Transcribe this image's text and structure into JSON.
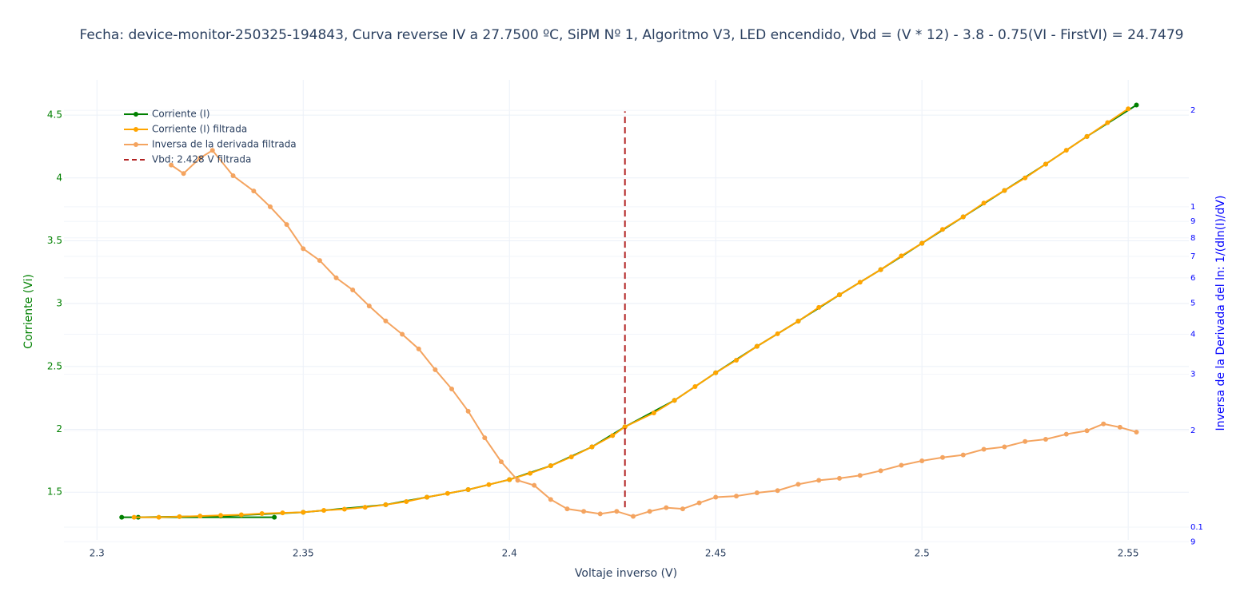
{
  "chart_data": {
    "type": "line",
    "title": "Fecha: device-monitor-250325-194843, Curva reverse IV a 27.7500 ºC, SiPM Nº 1, Algoritmo V3, LED encendido,  Vbd = (V * 12) - 3.8 - 0.75(VI - FirstVI) = 24.7479",
    "x_label": "Voltaje inverso (V)",
    "y_label": "Corriente (Vi)",
    "y2_label": "Inversa de la Derivada del ln: 1/(dln(I)/dV)",
    "xlim": [
      2.292,
      2.5647
    ],
    "xticks": [
      2.3,
      2.35,
      2.4,
      2.45,
      2.5,
      2.55
    ],
    "ylim": [
      1.12,
      4.78
    ],
    "yticks": [
      1.5,
      2,
      2.5,
      3,
      3.5,
      4,
      4.5
    ],
    "y2lim": [
      0.0912,
      2.49
    ],
    "y2_log": true,
    "y2ticks": [
      {
        "value": 0.09,
        "label": "9"
      },
      0.1,
      {
        "value": 0.2,
        "label": "2"
      },
      {
        "value": 0.3,
        "label": "3"
      },
      {
        "value": 0.4,
        "label": "4"
      },
      {
        "value": 0.5,
        "label": "5"
      },
      {
        "value": 0.6,
        "label": "6"
      },
      {
        "value": 0.7,
        "label": "7"
      },
      {
        "value": 0.8,
        "label": "8"
      },
      {
        "value": 0.9,
        "label": "9"
      },
      1,
      2
    ],
    "grid": true,
    "legend": "top-left",
    "series": [
      {
        "name": "Corriente (I)",
        "color": "#008000",
        "style": "solid",
        "markers": true,
        "x": [
          2.343,
          2.306,
          2.31,
          2.33,
          2.35,
          2.37,
          2.38,
          2.39,
          2.4,
          2.41,
          2.42,
          2.428,
          2.44,
          2.45,
          2.46,
          2.47,
          2.48,
          2.49,
          2.5,
          2.51,
          2.52,
          2.53,
          2.54,
          2.552
        ],
        "values": [
          1.3,
          1.3,
          1.3,
          1.31,
          1.34,
          1.4,
          1.46,
          1.52,
          1.6,
          1.71,
          1.86,
          2.02,
          2.23,
          2.45,
          2.66,
          2.86,
          3.07,
          3.27,
          3.48,
          3.69,
          3.9,
          4.11,
          4.33,
          4.58
        ]
      },
      {
        "name": "Corriente (I) filtrada",
        "color": "#ffa500",
        "style": "solid",
        "markers": true,
        "x": [
          2.309,
          2.315,
          2.32,
          2.325,
          2.33,
          2.335,
          2.34,
          2.345,
          2.35,
          2.355,
          2.36,
          2.365,
          2.37,
          2.375,
          2.38,
          2.385,
          2.39,
          2.395,
          2.4,
          2.405,
          2.41,
          2.415,
          2.42,
          2.425,
          2.428,
          2.435,
          2.44,
          2.445,
          2.45,
          2.455,
          2.46,
          2.465,
          2.47,
          2.475,
          2.48,
          2.485,
          2.49,
          2.495,
          2.5,
          2.505,
          2.51,
          2.515,
          2.52,
          2.525,
          2.53,
          2.535,
          2.54,
          2.545,
          2.55
        ],
        "values": [
          1.3,
          1.3,
          1.305,
          1.31,
          1.315,
          1.32,
          1.33,
          1.335,
          1.34,
          1.355,
          1.365,
          1.38,
          1.4,
          1.425,
          1.46,
          1.49,
          1.52,
          1.56,
          1.6,
          1.65,
          1.71,
          1.78,
          1.86,
          1.95,
          2.02,
          2.13,
          2.23,
          2.34,
          2.45,
          2.55,
          2.66,
          2.76,
          2.86,
          2.97,
          3.07,
          3.17,
          3.27,
          3.38,
          3.48,
          3.59,
          3.69,
          3.8,
          3.9,
          4.0,
          4.11,
          4.22,
          4.33,
          4.44,
          4.55
        ]
      },
      {
        "name": "Inversa de la derivada filtrada",
        "color": "#f4a460",
        "style": "solid",
        "markers": true,
        "axis": "y2",
        "x": [
          2.318,
          2.321,
          2.325,
          2.328,
          2.333,
          2.338,
          2.342,
          2.346,
          2.35,
          2.354,
          2.358,
          2.362,
          2.366,
          2.37,
          2.374,
          2.378,
          2.382,
          2.386,
          2.39,
          2.394,
          2.398,
          2.402,
          2.406,
          2.41,
          2.414,
          2.418,
          2.422,
          2.426,
          2.43,
          2.434,
          2.438,
          2.442,
          2.446,
          2.45,
          2.455,
          2.46,
          2.465,
          2.47,
          2.475,
          2.48,
          2.485,
          2.49,
          2.495,
          2.5,
          2.505,
          2.51,
          2.515,
          2.52,
          2.525,
          2.53,
          2.535,
          2.54,
          2.544,
          2.548,
          2.552
        ],
        "values": [
          1.35,
          1.27,
          1.42,
          1.5,
          1.25,
          1.12,
          1.0,
          0.88,
          0.74,
          0.68,
          0.6,
          0.55,
          0.49,
          0.44,
          0.4,
          0.36,
          0.31,
          0.27,
          0.23,
          0.19,
          0.16,
          0.14,
          0.135,
          0.122,
          0.114,
          0.112,
          0.11,
          0.112,
          0.108,
          0.112,
          0.115,
          0.114,
          0.119,
          0.124,
          0.125,
          0.128,
          0.13,
          0.136,
          0.14,
          0.142,
          0.145,
          0.15,
          0.156,
          0.161,
          0.165,
          0.168,
          0.175,
          0.178,
          0.185,
          0.188,
          0.195,
          0.2,
          0.21,
          0.205,
          0.198
        ]
      },
      {
        "name": "Vbd: 2.428 V filtrada",
        "color": "#b22222",
        "style": "dash",
        "markers": false,
        "x": [
          2.428,
          2.428
        ],
        "values": [
          1.38,
          4.53
        ]
      }
    ]
  }
}
